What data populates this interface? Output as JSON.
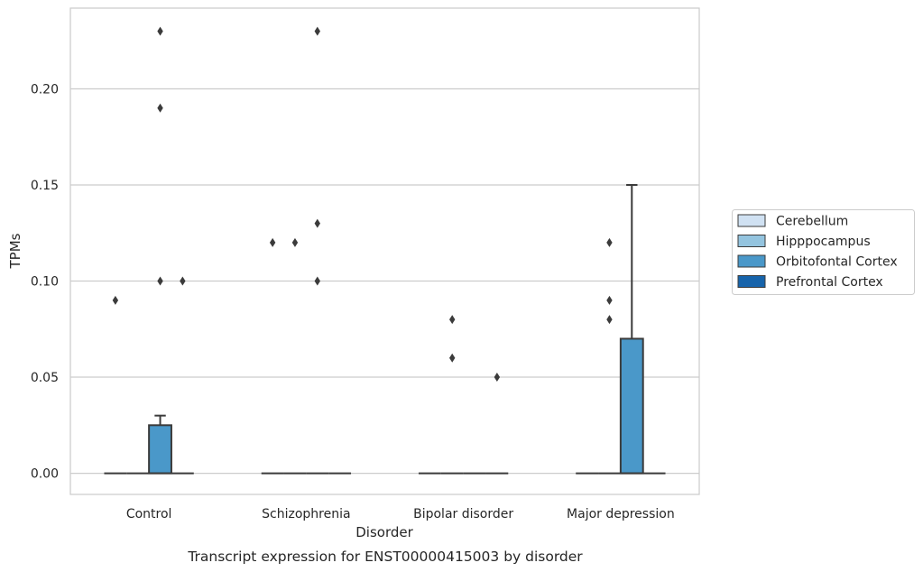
{
  "chart_data": {
    "type": "box",
    "xlabel": "Disorder",
    "ylabel": "TPMs",
    "caption": "Transcript expression for ENST00000415003 by disorder",
    "categories": [
      "Control",
      "Schizophrenia",
      "Bipolar disorder",
      "Major depression"
    ],
    "ylim": [
      -0.011,
      0.242
    ],
    "yticks": [
      0.0,
      0.05,
      0.1,
      0.15,
      0.2
    ],
    "ytick_labels": [
      "0.00",
      "0.05",
      "0.10",
      "0.15",
      "0.20"
    ],
    "grid": "horizontal",
    "legend_position": "right",
    "series": [
      {
        "name": "Cerebellum",
        "color": "#d0e1f2",
        "boxes": [
          {
            "q1": 0,
            "median": 0,
            "q3": 0,
            "whisker_low": 0,
            "whisker_high": 0,
            "outliers": [
              0.09
            ]
          },
          {
            "q1": 0,
            "median": 0,
            "q3": 0,
            "whisker_low": 0,
            "whisker_high": 0,
            "outliers": [
              0.12
            ]
          },
          {
            "q1": 0,
            "median": 0,
            "q3": 0,
            "whisker_low": 0,
            "whisker_high": 0,
            "outliers": []
          },
          {
            "q1": 0,
            "median": 0,
            "q3": 0,
            "whisker_low": 0,
            "whisker_high": 0,
            "outliers": []
          }
        ]
      },
      {
        "name": "Hipppocampus",
        "color": "#94c4df",
        "boxes": [
          {
            "q1": 0,
            "median": 0,
            "q3": 0,
            "whisker_low": 0,
            "whisker_high": 0,
            "outliers": []
          },
          {
            "q1": 0,
            "median": 0,
            "q3": 0,
            "whisker_low": 0,
            "whisker_high": 0,
            "outliers": [
              0.12
            ]
          },
          {
            "q1": 0,
            "median": 0,
            "q3": 0,
            "whisker_low": 0,
            "whisker_high": 0,
            "outliers": [
              0.08,
              0.06
            ]
          },
          {
            "q1": 0,
            "median": 0,
            "q3": 0,
            "whisker_low": 0,
            "whisker_high": 0,
            "outliers": [
              0.12,
              0.09,
              0.08
            ]
          }
        ]
      },
      {
        "name": "Orbitofontal Cortex",
        "color": "#4a98c9",
        "boxes": [
          {
            "q1": 0,
            "median": 0,
            "q3": 0.025,
            "whisker_low": 0,
            "whisker_high": 0.03,
            "outliers": [
              0.23,
              0.19,
              0.1
            ]
          },
          {
            "q1": 0,
            "median": 0,
            "q3": 0,
            "whisker_low": 0,
            "whisker_high": 0,
            "outliers": [
              0.23,
              0.13,
              0.1
            ]
          },
          {
            "q1": 0,
            "median": 0,
            "q3": 0,
            "whisker_low": 0,
            "whisker_high": 0,
            "outliers": []
          },
          {
            "q1": 0,
            "median": 0,
            "q3": 0.07,
            "whisker_low": 0,
            "whisker_high": 0.15,
            "outliers": []
          }
        ]
      },
      {
        "name": "Prefrontal Cortex",
        "color": "#1764ab",
        "boxes": [
          {
            "q1": 0,
            "median": 0,
            "q3": 0,
            "whisker_low": 0,
            "whisker_high": 0,
            "outliers": [
              0.1
            ]
          },
          {
            "q1": 0,
            "median": 0,
            "q3": 0,
            "whisker_low": 0,
            "whisker_high": 0,
            "outliers": []
          },
          {
            "q1": 0,
            "median": 0,
            "q3": 0,
            "whisker_low": 0,
            "whisker_high": 0,
            "outliers": [
              0.05
            ]
          },
          {
            "q1": 0,
            "median": 0,
            "q3": 0,
            "whisker_low": 0,
            "whisker_high": 0,
            "outliers": []
          }
        ]
      }
    ]
  }
}
